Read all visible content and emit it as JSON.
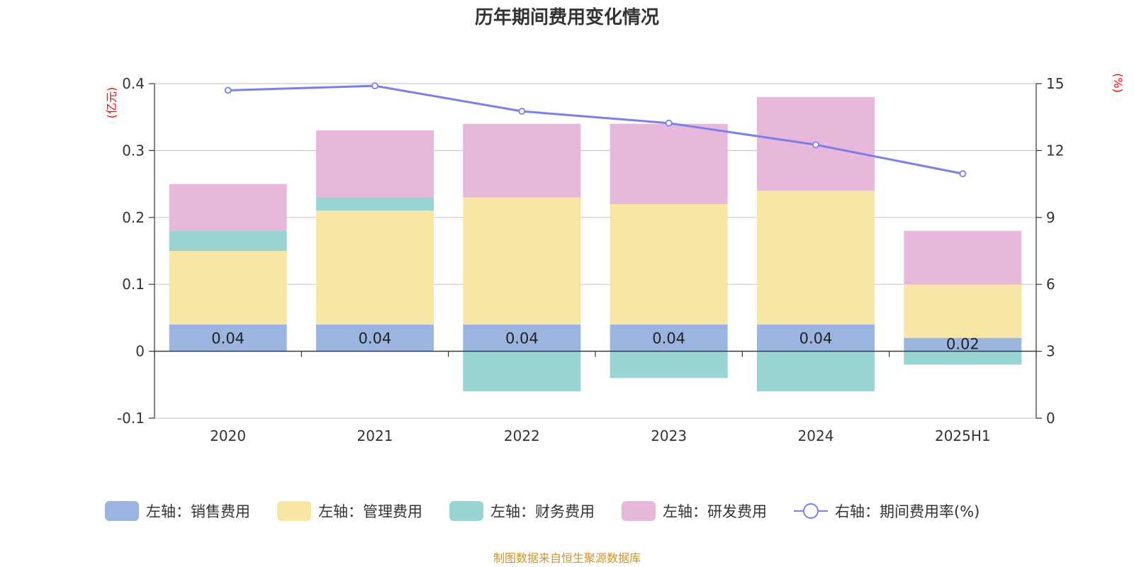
{
  "chart_data": {
    "type": "bar",
    "title": "历年期间费用变化情况",
    "categories": [
      "2020",
      "2021",
      "2022",
      "2023",
      "2024",
      "2025H1"
    ],
    "stacked": true,
    "series": [
      {
        "name": "左轴：销售费用",
        "axis": "left",
        "color": "#9bb5e0",
        "values": [
          0.04,
          0.04,
          0.04,
          0.04,
          0.04,
          0.02
        ],
        "labels": [
          "0.04",
          "0.04",
          "0.04",
          "0.04",
          "0.04",
          "0.02"
        ]
      },
      {
        "name": "左轴：管理费用",
        "axis": "left",
        "color": "#f8e6a7",
        "values": [
          0.11,
          0.17,
          0.19,
          0.18,
          0.2,
          0.08
        ]
      },
      {
        "name": "左轴：财务费用",
        "axis": "left",
        "color": "#99d4d5",
        "values": [
          0.03,
          0.02,
          -0.06,
          -0.04,
          -0.06,
          -0.02
        ]
      },
      {
        "name": "左轴：研发费用",
        "axis": "left",
        "color": "#e7b8d9",
        "values": [
          0.07,
          0.1,
          0.11,
          0.12,
          0.14,
          0.08
        ]
      },
      {
        "name": "右轴：期间费用率(%)",
        "axis": "right",
        "type": "line",
        "color": "#7b7eeb",
        "values": [
          14.7,
          14.9,
          13.76,
          13.23,
          12.26,
          10.96
        ]
      }
    ],
    "left_axis": {
      "unit": "(亿元)",
      "ylim": [
        -0.1,
        0.4
      ],
      "ticks": [
        -0.1,
        0,
        0.1,
        0.2,
        0.3,
        0.4
      ],
      "tick_labels": [
        "-0.1",
        "0",
        "0.1",
        "0.2",
        "0.3",
        "0.4"
      ]
    },
    "right_axis": {
      "unit": "(%)",
      "ylim": [
        0,
        15
      ],
      "ticks": [
        0,
        3,
        6,
        9,
        12,
        15
      ],
      "tick_labels": [
        "0",
        "3",
        "6",
        "9",
        "12",
        "15"
      ]
    },
    "grid": true,
    "legend_position": "bottom"
  },
  "source_text": "制图数据来自恒生聚源数据库",
  "colors": {
    "grid": "#cccccc",
    "axis": "#333333",
    "unit": "#ff0000",
    "source": "#c8962c"
  }
}
